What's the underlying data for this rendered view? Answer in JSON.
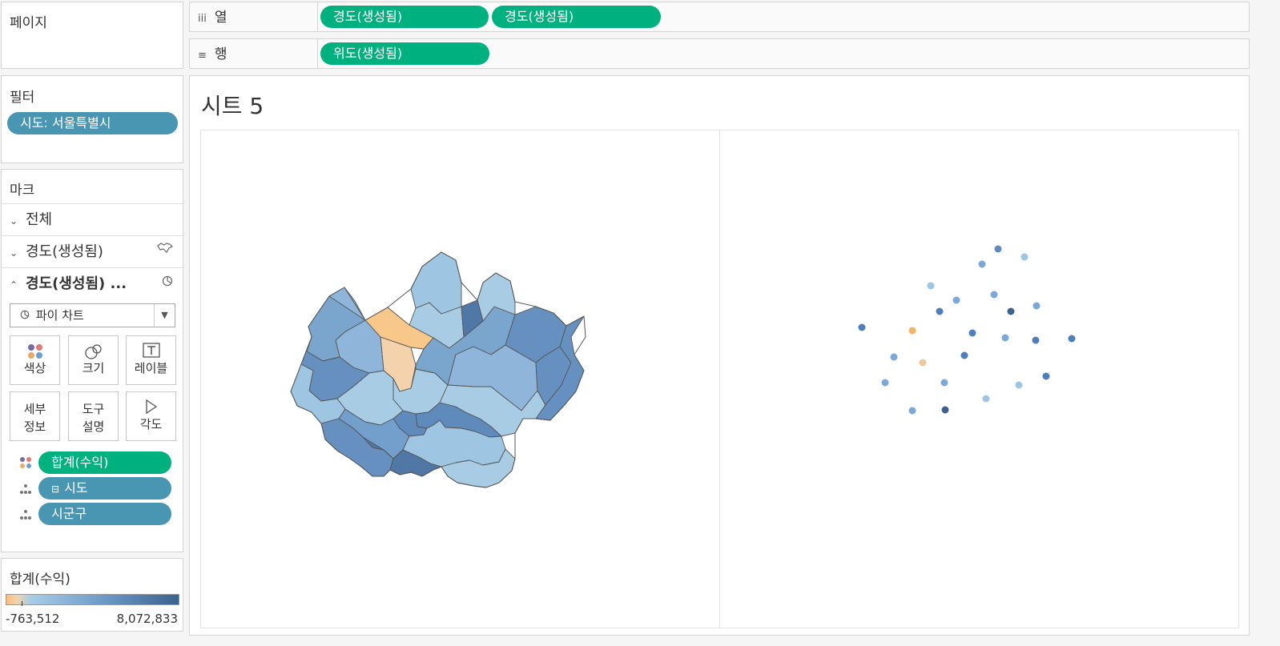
{
  "pages": {
    "title": "페이지"
  },
  "columns": {
    "label": "열",
    "pills": [
      "경도(생성됨)",
      "경도(생성됨)"
    ]
  },
  "rows": {
    "label": "행",
    "pills": [
      "위도(생성됨)"
    ]
  },
  "filters": {
    "title": "필터",
    "pills": [
      "시도: 서울특별시"
    ]
  },
  "marks": {
    "title": "마크",
    "cards": [
      {
        "label": "전체",
        "icon": ""
      },
      {
        "label": "경도(생성됨)",
        "icon": "map-icon"
      },
      {
        "label": "경도(생성됨) ...",
        "icon": "pie-icon"
      }
    ],
    "mark_type": "파이 차트",
    "buttons": [
      "색상",
      "크기",
      "레이블",
      "세부 정보",
      "도구 설명",
      "각도"
    ],
    "fields": [
      {
        "label": "합계(수익)",
        "kind": "color"
      },
      {
        "label": "시도",
        "kind": "detail"
      },
      {
        "label": "시군구",
        "kind": "detail"
      }
    ]
  },
  "legend": {
    "title": "합계(수익)",
    "min_label": "-763,512",
    "max_label": "8,072,833",
    "min": -763512,
    "max": 8072833,
    "colors": [
      "#f9be7b",
      "#a8cde6",
      "#3c628f"
    ]
  },
  "sheet": {
    "title": "시트 5"
  },
  "map_region_colors": [
    "#f4d2ab",
    "#f8c78a",
    "#a9cce5",
    "#8fb6da",
    "#7aa6ce",
    "#6690c0",
    "#4f78a6",
    "#9ec6e3",
    "#739fcc",
    "#5f8bbc"
  ],
  "dot_colors": [
    "#4f7fb9",
    "#f5b36a",
    "#9ec6e3",
    "#7ba8d4",
    "#3c628f",
    "#5f8bbc",
    "#e9c9a2"
  ]
}
